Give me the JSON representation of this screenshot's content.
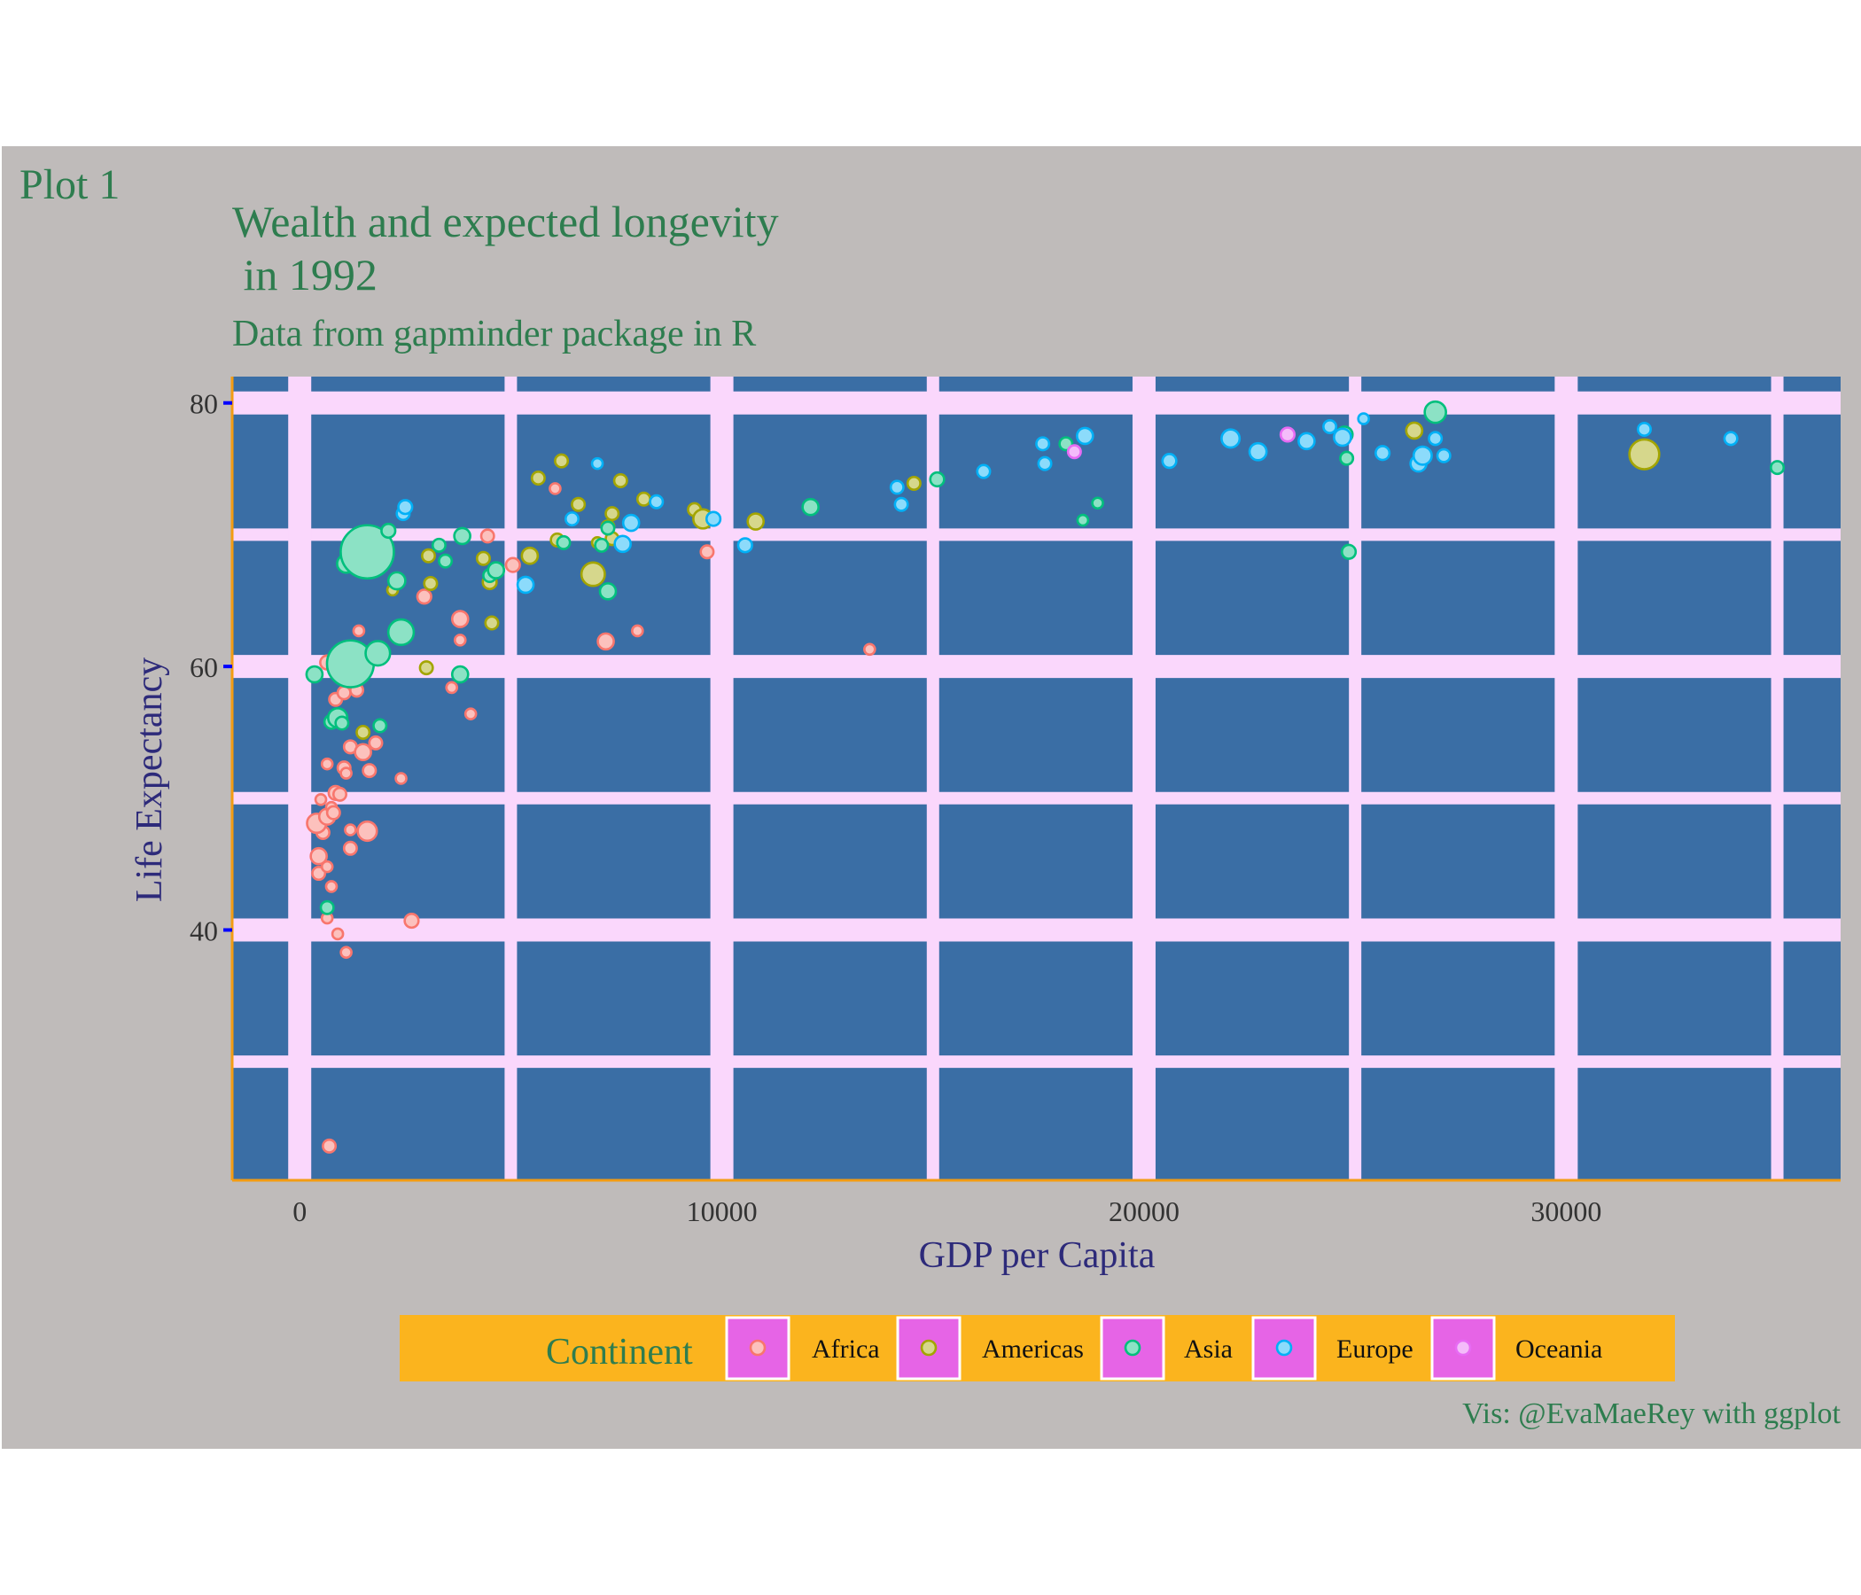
{
  "tag": "Plot 1",
  "title_line1": "Wealth and expected longevity",
  "title_line2": " in 1992",
  "subtitle": "Data from gapminder package in R",
  "caption": "Vis: @EvaMaeRey with ggplot",
  "colors": {
    "panel_bg": "#BFBBBA",
    "plot_bg": "#3A6EA5",
    "grid": "#FAD7FC",
    "axis_line": "#F39C12",
    "tick": "#0000FF",
    "title_text": "#2E7D4F",
    "axis_title_text": "#2D2A7A",
    "legend_bg": "#FBB41E",
    "legend_key_bg": "#E664E6",
    "Africa": "#F8766D",
    "Americas": "#A3A500",
    "Asia": "#00BF7D",
    "Europe": "#00B0F6",
    "Oceania": "#E76BF3"
  },
  "chart_data": {
    "type": "scatter",
    "xlabel": "GDP per Capita",
    "ylabel": "Life Expectancy",
    "xlim": [
      -1600,
      36500
    ],
    "ylim": [
      21,
      82
    ],
    "x_ticks": [
      0,
      10000,
      20000,
      30000
    ],
    "x_tick_labels": [
      "0",
      "10000",
      "20000",
      "30000"
    ],
    "y_ticks": [
      40,
      60,
      80
    ],
    "y_tick_labels": [
      "40",
      "60",
      "80"
    ],
    "grid": true,
    "legend": {
      "title": "Continent",
      "position": "bottom",
      "items": [
        "Africa",
        "Americas",
        "Asia",
        "Europe",
        "Oceania"
      ]
    },
    "size_encoding": "population (relative bubble radius)",
    "series": [
      {
        "name": "Africa",
        "points": [
          [
            700,
            23.6,
            1.2
          ],
          [
            1100,
            38.3,
            1
          ],
          [
            900,
            39.7,
            1
          ],
          [
            650,
            40.9,
            1
          ],
          [
            2650,
            40.7,
            1.3
          ],
          [
            450,
            44.3,
            1.2
          ],
          [
            750,
            43.3,
            1
          ],
          [
            450,
            45.6,
            1.5
          ],
          [
            650,
            44.8,
            1
          ],
          [
            550,
            47.4,
            1.2
          ],
          [
            400,
            48.1,
            1.8
          ],
          [
            1600,
            47.5,
            1.8
          ],
          [
            1200,
            47.6,
            1
          ],
          [
            1200,
            46.2,
            1.2
          ],
          [
            650,
            48.6,
            1.5
          ],
          [
            750,
            49.3,
            1
          ],
          [
            800,
            48.9,
            1.2
          ],
          [
            850,
            50.4,
            1.3
          ],
          [
            950,
            50.3,
            1.2
          ],
          [
            500,
            49.9,
            1
          ],
          [
            1050,
            52.3,
            1.2
          ],
          [
            1100,
            51.9,
            1
          ],
          [
            1200,
            53.9,
            1.2
          ],
          [
            1500,
            53.5,
            1.5
          ],
          [
            1650,
            52.1,
            1.2
          ],
          [
            1800,
            54.2,
            1.2
          ],
          [
            2400,
            51.5,
            1
          ],
          [
            650,
            52.6,
            1
          ],
          [
            850,
            57.5,
            1.2
          ],
          [
            1050,
            58.0,
            1.2
          ],
          [
            1350,
            58.2,
            1.2
          ],
          [
            950,
            59.6,
            1.2
          ],
          [
            1350,
            59.3,
            1.5
          ],
          [
            650,
            60.3,
            1.3
          ],
          [
            1400,
            62.7,
            1
          ],
          [
            2950,
            65.3,
            1.3
          ],
          [
            3800,
            62.0,
            1
          ],
          [
            3800,
            63.6,
            1.5
          ],
          [
            3600,
            58.4,
            1
          ],
          [
            4050,
            56.4,
            1
          ],
          [
            4450,
            69.9,
            1.2
          ],
          [
            5050,
            67.7,
            1.3
          ],
          [
            6050,
            73.5,
            1
          ],
          [
            7250,
            61.9,
            1.5
          ],
          [
            8000,
            62.7,
            1
          ],
          [
            9650,
            68.7,
            1.2
          ],
          [
            13500,
            61.3,
            1
          ]
        ]
      },
      {
        "name": "Americas",
        "points": [
          [
            1500,
            55.0,
            1.2
          ],
          [
            3000,
            59.9,
            1.2
          ],
          [
            2200,
            65.8,
            1
          ],
          [
            3050,
            68.4,
            1.2
          ],
          [
            3100,
            66.3,
            1.2
          ],
          [
            4350,
            68.2,
            1.2
          ],
          [
            4500,
            66.4,
            1.3
          ],
          [
            4550,
            63.3,
            1.2
          ],
          [
            5450,
            68.4,
            1.5
          ],
          [
            5650,
            74.3,
            1.2
          ],
          [
            6100,
            69.6,
            1.2
          ],
          [
            6200,
            75.6,
            1.2
          ],
          [
            6600,
            72.3,
            1.2
          ],
          [
            7050,
            69.4,
            1
          ],
          [
            6950,
            67.0,
            2.2
          ],
          [
            7300,
            70.6,
            1.2
          ],
          [
            7400,
            69.7,
            1.2
          ],
          [
            7400,
            71.6,
            1.2
          ],
          [
            7600,
            74.1,
            1.2
          ],
          [
            8150,
            72.7,
            1.2
          ],
          [
            9350,
            71.9,
            1.2
          ],
          [
            9550,
            71.2,
            1.8
          ],
          [
            10800,
            71.0,
            1.5
          ],
          [
            14550,
            73.9,
            1.2
          ],
          [
            26400,
            77.9,
            1.5
          ],
          [
            31850,
            76.1,
            2.8
          ]
        ]
      },
      {
        "name": "Asia",
        "points": [
          [
            350,
            59.4,
            1.5
          ],
          [
            650,
            41.7,
            1.2
          ],
          [
            750,
            55.8,
            1.3
          ],
          [
            900,
            56.1,
            1.8
          ],
          [
            1000,
            55.7,
            1.2
          ],
          [
            1100,
            67.8,
            1.7
          ],
          [
            1200,
            60.2,
            4.4
          ],
          [
            1600,
            68.7,
            5.0
          ],
          [
            1850,
            61.0,
            2.3
          ],
          [
            1900,
            55.5,
            1.2
          ],
          [
            2100,
            70.3,
            1.3
          ],
          [
            2300,
            66.5,
            1.6
          ],
          [
            2400,
            62.6,
            2.4
          ],
          [
            3300,
            69.2,
            1.2
          ],
          [
            3450,
            68.0,
            1.2
          ],
          [
            3800,
            59.4,
            1.5
          ],
          [
            3850,
            69.9,
            1.5
          ],
          [
            4500,
            66.9,
            1.2
          ],
          [
            4650,
            67.3,
            1.5
          ],
          [
            6250,
            69.4,
            1.2
          ],
          [
            7150,
            69.2,
            1.2
          ],
          [
            7300,
            70.5,
            1.2
          ],
          [
            7300,
            65.7,
            1.5
          ],
          [
            12100,
            72.1,
            1.5
          ],
          [
            15100,
            74.2,
            1.3
          ],
          [
            18150,
            76.9,
            1.2
          ],
          [
            18550,
            71.1,
            1
          ],
          [
            18900,
            72.4,
            1
          ],
          [
            24750,
            77.6,
            1.5
          ],
          [
            24800,
            75.8,
            1.2
          ],
          [
            24850,
            68.7,
            1.3
          ],
          [
            26900,
            79.3,
            2.0
          ],
          [
            35000,
            75.1,
            1.2
          ]
        ]
      },
      {
        "name": "Europe",
        "points": [
          [
            2450,
            71.6,
            1.2
          ],
          [
            2500,
            72.1,
            1.3
          ],
          [
            5350,
            66.2,
            1.5
          ],
          [
            6450,
            71.2,
            1.2
          ],
          [
            7050,
            75.4,
            1
          ],
          [
            7650,
            69.3,
            1.5
          ],
          [
            7850,
            70.9,
            1.5
          ],
          [
            8450,
            72.5,
            1.2
          ],
          [
            9800,
            71.2,
            1.3
          ],
          [
            10550,
            69.2,
            1.3
          ],
          [
            14150,
            73.6,
            1.2
          ],
          [
            14250,
            72.3,
            1.2
          ],
          [
            16200,
            74.8,
            1.2
          ],
          [
            17600,
            76.9,
            1.2
          ],
          [
            17650,
            75.4,
            1.2
          ],
          [
            18600,
            77.5,
            1.5
          ],
          [
            20600,
            75.6,
            1.3
          ],
          [
            22050,
            77.3,
            1.7
          ],
          [
            22700,
            76.3,
            1.6
          ],
          [
            23850,
            77.1,
            1.5
          ],
          [
            24400,
            78.2,
            1.2
          ],
          [
            24700,
            77.4,
            1.6
          ],
          [
            25200,
            78.8,
            1
          ],
          [
            25650,
            76.2,
            1.3
          ],
          [
            26500,
            75.4,
            1.5
          ],
          [
            26600,
            76.0,
            1.7
          ],
          [
            26900,
            77.3,
            1.2
          ],
          [
            27100,
            76.0,
            1.2
          ],
          [
            31850,
            78.0,
            1.2
          ],
          [
            33900,
            77.3,
            1.2
          ]
        ]
      },
      {
        "name": "Oceania",
        "points": [
          [
            18350,
            76.3,
            1.2
          ],
          [
            23400,
            77.6,
            1.3
          ]
        ]
      }
    ]
  }
}
